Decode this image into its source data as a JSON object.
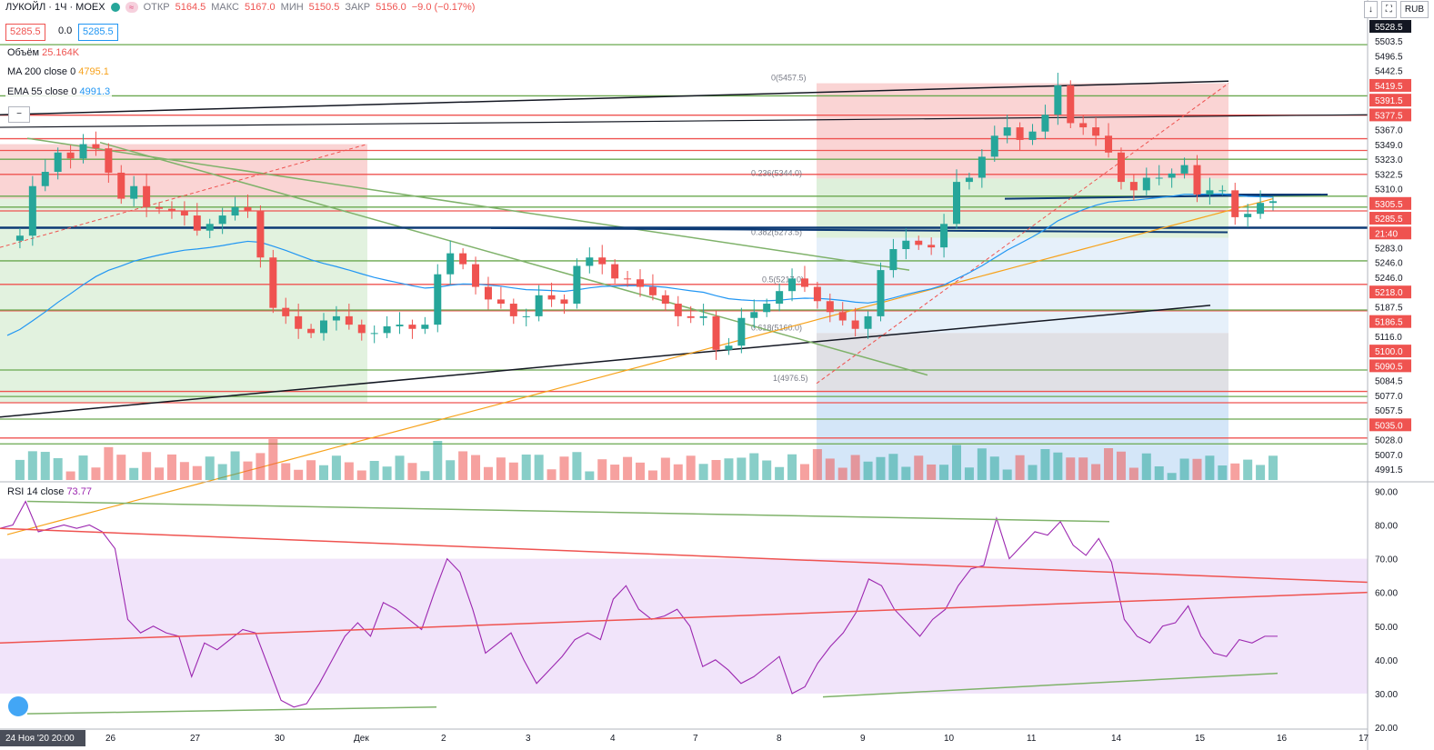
{
  "header": {
    "symbol": "ЛУКОЙЛ · 1Ч · MOEX",
    "open_label": "ОТКР",
    "open": "5164.5",
    "high_label": "МАКС",
    "high": "5167.0",
    "low_label": "МИН",
    "low": "5150.5",
    "close_label": "ЗАКР",
    "close": "5156.0",
    "change": "−9.0 (−0.17%)",
    "bid": "5285.5",
    "spread": "0.0",
    "ask": "5285.5",
    "currency": "RUB"
  },
  "indicators": {
    "volume_label": "Объём",
    "volume_value": "25.164K",
    "ma_label": "MA 200 close 0",
    "ma_value": "4795.1",
    "ema_label": "EMA 55 close 0",
    "ema_value": "4991.3",
    "rsi_label": "RSI 14 close",
    "rsi_value": "73.77"
  },
  "colors": {
    "up": "#26a69a",
    "down": "#ef5350",
    "ma": "#f7a21b",
    "ema": "#2196f3",
    "rsi": "#9c27b0",
    "fib_zone_red": "#f9c9c9",
    "fib_zone_green": "#d6ecd2",
    "fib_zone_blue": "#cfe3f7"
  },
  "icons": {
    "fold": "minus-icon",
    "logo": "tradingview-logo-icon"
  },
  "chart_data": [
    {
      "type": "candlestick",
      "title": "ЛУКОЙЛ · 1Ч · MOEX",
      "ylim": [
        4985,
        5535
      ],
      "y_ticks": [
        "5528.5",
        "5503.5",
        "5496.5",
        "5442.5",
        "5419.5",
        "5391.5",
        "5377.5",
        "5367.0",
        "5349.0",
        "5323.0",
        "5322.5",
        "5310.0",
        "5305.5",
        "5285.5",
        "21:40",
        "5283.0",
        "5246.0",
        "5246.0",
        "5218.0",
        "5187.5",
        "5186.5",
        "5116.0",
        "5100.0",
        "5090.5",
        "5084.5",
        "5077.0",
        "5057.5",
        "5035.0",
        "5028.0",
        "5007.0",
        "4991.5"
      ],
      "x_ticks": [
        "24 Ноя '20 20:00",
        "26",
        "27",
        "30",
        "Дек",
        "2",
        "3",
        "4",
        "7",
        "8",
        "9",
        "10",
        "11",
        "14",
        "15",
        "16",
        "17"
      ],
      "horizontal_levels_red": [
        5419.5,
        5391.5,
        5377.5,
        5349.0,
        5305.5,
        5285.5,
        5218.0,
        5186.5,
        5090.5,
        5077.0,
        5035.0
      ],
      "horizontal_levels_green": [
        5503.5,
        5442.5,
        5367.0,
        5323.0,
        5310.0,
        5246.0,
        5187.5,
        5116.0,
        5084.5,
        5057.5,
        5028.0
      ],
      "fib_labels": [
        "0(5457.5)",
        "0.236(5344.0)",
        "0.382(5273.5)",
        "0.5(5217.0)",
        "0.618(5160.0)",
        "1(4976.5)"
      ],
      "close_path": [
        5270,
        5276,
        5335,
        5352,
        5375,
        5368,
        5385,
        5380,
        5351,
        5320,
        5335,
        5310,
        5308,
        5305,
        5300,
        5282,
        5290,
        5300,
        5310,
        5306,
        5250,
        5190,
        5180,
        5165,
        5160,
        5175,
        5180,
        5170,
        5160,
        5160,
        5168,
        5170,
        5165,
        5170,
        5230,
        5255,
        5242,
        5215,
        5200,
        5195,
        5180,
        5180,
        5205,
        5200,
        5195,
        5240,
        5250,
        5242,
        5225,
        5224,
        5215,
        5205,
        5195,
        5180,
        5178,
        5180,
        5140,
        5145,
        5178,
        5185,
        5195,
        5210,
        5225,
        5215,
        5198,
        5185,
        5175,
        5165,
        5180,
        5235,
        5260,
        5270,
        5265,
        5262,
        5290,
        5340,
        5345,
        5370,
        5395,
        5405,
        5390,
        5400,
        5420,
        5455,
        5410,
        5405,
        5395,
        5375,
        5340,
        5330,
        5345,
        5345,
        5350,
        5360,
        5325,
        5330,
        5330,
        5298,
        5302,
        5315,
        5317
      ]
    },
    {
      "type": "line",
      "title": "RSI 14 close",
      "ylim": [
        20,
        92
      ],
      "y_ticks": [
        "90.00",
        "80.00",
        "70.00",
        "60.00",
        "50.00",
        "40.00",
        "30.00",
        "20.00"
      ],
      "band": [
        30,
        70
      ],
      "values": [
        79,
        80,
        87,
        78,
        79,
        80,
        79,
        80,
        78,
        73,
        52,
        48,
        50,
        48,
        47,
        35,
        45,
        43,
        46,
        49,
        48,
        38,
        28,
        26,
        27,
        33,
        40,
        47,
        51,
        47,
        57,
        55,
        52,
        49,
        60,
        70,
        66,
        55,
        42,
        45,
        48,
        40,
        33,
        37,
        41,
        46,
        48,
        46,
        58,
        62,
        55,
        52,
        53,
        55,
        50,
        38,
        40,
        37,
        33,
        35,
        38,
        41,
        30,
        32,
        39,
        44,
        48,
        54,
        64,
        62,
        55,
        51,
        47,
        52,
        55,
        62,
        67,
        68,
        82,
        70,
        74,
        78,
        77,
        81,
        74,
        71,
        76,
        69,
        52,
        47,
        45,
        50,
        51,
        56,
        47,
        42,
        41,
        46,
        45,
        47,
        47
      ]
    }
  ]
}
